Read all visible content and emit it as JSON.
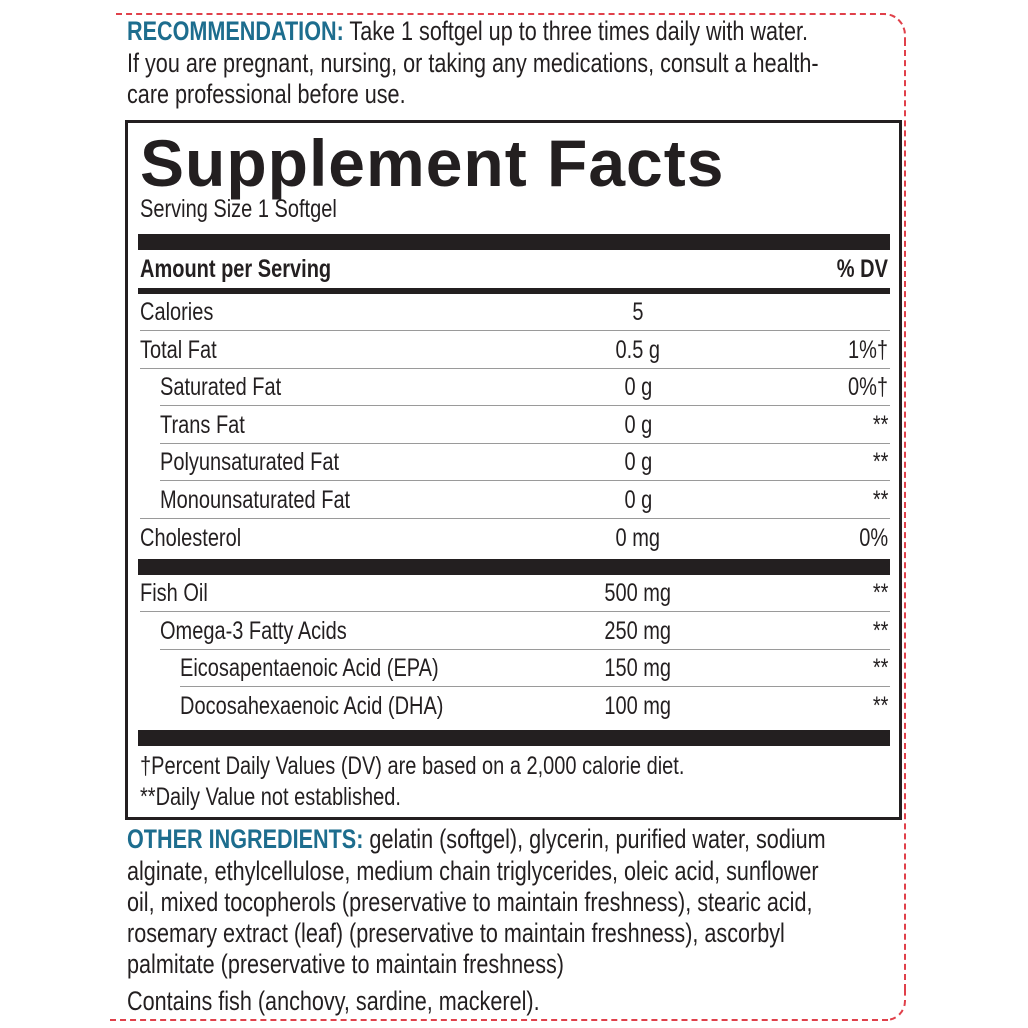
{
  "recommendation": {
    "label": "RECOMMENDATION:",
    "lines": [
      "Take 1 softgel up to three times daily with water.",
      "If you are pregnant, nursing, or taking any medications, consult a health-",
      "care professional before use."
    ]
  },
  "facts": {
    "title": "Supplement Facts",
    "serving_size": "Serving Size 1 Softgel",
    "header_amount": "Amount per Serving",
    "header_dv": "% DV",
    "group1": [
      {
        "name": "Calories",
        "amount": "5",
        "dv": "",
        "level": 0
      },
      {
        "name": "Total Fat",
        "amount": "0.5 g",
        "dv": "1%†",
        "level": 0
      },
      {
        "name": "Saturated Fat",
        "amount": "0 g",
        "dv": "0%†",
        "level": 1
      },
      {
        "name": "Trans Fat",
        "amount": "0 g",
        "dv": "**",
        "level": 1
      },
      {
        "name": "Polyunsaturated Fat",
        "amount": "0 g",
        "dv": "**",
        "level": 1
      },
      {
        "name": "Monounsaturated Fat",
        "amount": "0 g",
        "dv": "**",
        "level": 1
      },
      {
        "name": "Cholesterol",
        "amount": "0 mg",
        "dv": "0%",
        "level": 0
      }
    ],
    "group2": [
      {
        "name": "Fish Oil",
        "amount": "500 mg",
        "dv": "**",
        "level": 0
      },
      {
        "name": "Omega-3 Fatty Acids",
        "amount": "250 mg",
        "dv": "**",
        "level": 1
      },
      {
        "name": "Eicosapentaenoic Acid (EPA)",
        "amount": "150 mg",
        "dv": "**",
        "level": 2
      },
      {
        "name": "Docosahexaenoic Acid (DHA)",
        "amount": "100 mg",
        "dv": "**",
        "level": 2
      }
    ],
    "footnotes": [
      "†Percent Daily Values (DV) are based on a 2,000 calorie diet.",
      "**Daily Value not established."
    ]
  },
  "other_ingredients": {
    "label": "OTHER INGREDIENTS:",
    "lines": [
      "gelatin (softgel), glycerin, purified water, sodium",
      "alginate, ethylcellulose, medium chain triglycerides, oleic acid, sunflower",
      "oil, mixed tocopherols (preservative to maintain freshness), stearic acid,",
      "rosemary extract (leaf) (preservative to maintain freshness), ascorbyl",
      "palmitate (preservative to maintain freshness)"
    ],
    "allergen": "Contains fish (anchovy, sardine, mackerel)."
  },
  "colors": {
    "accent_blue": "#1d6d8e",
    "dashed_border": "#e0404a",
    "ink": "#231f20"
  }
}
